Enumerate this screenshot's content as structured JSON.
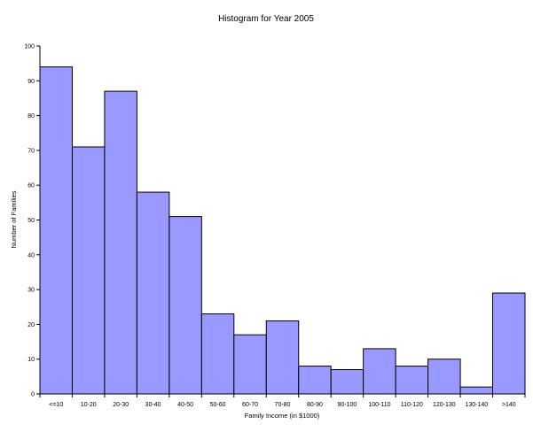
{
  "chart_data": {
    "type": "bar",
    "title": "Histogram for Year 2005",
    "xlabel": "Family Income (in $1000)",
    "ylabel": "Number of Families",
    "categories": [
      "<=10",
      "10-20",
      "20-30",
      "30-40",
      "40-50",
      "50-60",
      "60-70",
      "70-80",
      "80-90",
      "90-100",
      "100-110",
      "110-120",
      "120-130",
      "130-140",
      ">140"
    ],
    "values": [
      94,
      71,
      87,
      58,
      51,
      23,
      17,
      21,
      8,
      7,
      13,
      8,
      10,
      2,
      29
    ],
    "ylim": [
      0,
      100
    ],
    "yticks": [
      "0",
      "10",
      "20",
      "30",
      "40",
      "50",
      "60",
      "70",
      "80",
      "90",
      "100"
    ],
    "grid": false,
    "legend": "none",
    "colors": {
      "bar_fill": "#9999ff",
      "bar_stroke": "#000000"
    }
  }
}
